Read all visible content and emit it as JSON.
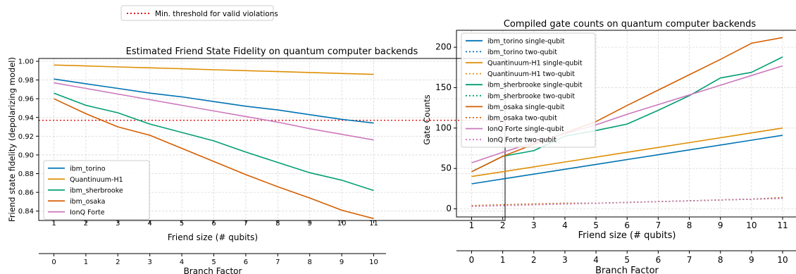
{
  "figure_legend": {
    "label": "Min. threshold for valid violations",
    "color": "#e41a1c"
  },
  "chart_data": [
    {
      "type": "line",
      "title": "Estimated Friend State Fidelity on quantum computer backends",
      "xlabel": "Friend size (# qubits)",
      "ylabel": "Friend state fidelity (depolarizing model)",
      "secondary_xlabel": "Branch Factor",
      "x": [
        1,
        2,
        3,
        4,
        5,
        6,
        7,
        8,
        9,
        10,
        11
      ],
      "xticks": [
        "1",
        "2",
        "3",
        "4",
        "5",
        "6",
        "7",
        "8",
        "9",
        "10",
        "11"
      ],
      "secondary_xticks": [
        "0",
        "1",
        "2",
        "3",
        "4",
        "5",
        "6",
        "7",
        "8",
        "9",
        "10"
      ],
      "yticks": [
        "0.84",
        "0.86",
        "0.88",
        "0.90",
        "0.92",
        "0.94",
        "0.96",
        "0.98",
        "1.00"
      ],
      "ylim": [
        0.83,
        1.003
      ],
      "grid": true,
      "legend_position": "lower-left",
      "threshold": 0.937,
      "series": [
        {
          "name": "ibm_torino",
          "color": "#0173b2",
          "style": "solid",
          "values": [
            0.981,
            0.976,
            0.971,
            0.966,
            0.962,
            0.957,
            0.952,
            0.948,
            0.943,
            0.938,
            0.934
          ]
        },
        {
          "name": "Quantinuum-H1",
          "color": "#de8f05",
          "style": "solid",
          "values": [
            0.996,
            0.995,
            0.994,
            0.993,
            0.992,
            0.991,
            0.99,
            0.989,
            0.988,
            0.987,
            0.986
          ]
        },
        {
          "name": "ibm_sherbrooke",
          "color": "#029e73",
          "style": "solid",
          "values": [
            0.966,
            0.953,
            0.945,
            0.933,
            0.924,
            0.915,
            0.903,
            0.892,
            0.881,
            0.873,
            0.862
          ]
        },
        {
          "name": "ibm_osaka",
          "color": "#d55e00",
          "style": "solid",
          "values": [
            0.96,
            0.944,
            0.93,
            0.921,
            0.907,
            0.893,
            0.879,
            0.866,
            0.854,
            0.841,
            0.832
          ]
        },
        {
          "name": "IonQ Forte",
          "color": "#cc78bc",
          "style": "solid",
          "values": [
            0.977,
            0.971,
            0.965,
            0.959,
            0.953,
            0.947,
            0.941,
            0.935,
            0.928,
            0.922,
            0.916
          ]
        }
      ]
    },
    {
      "type": "line",
      "title": "Compiled gate counts on quantum computer backends",
      "xlabel": "Friend size (# qubits)",
      "ylabel": "Gate Counts",
      "secondary_xlabel": "Branch Factor",
      "x": [
        1,
        2,
        3,
        4,
        5,
        6,
        7,
        8,
        9,
        10,
        11
      ],
      "xticks": [
        "1",
        "2",
        "3",
        "4",
        "5",
        "6",
        "7",
        "8",
        "9",
        "10",
        "11"
      ],
      "secondary_xticks": [
        "0",
        "1",
        "2",
        "3",
        "4",
        "5",
        "6",
        "7",
        "8",
        "9",
        "10"
      ],
      "yticks": [
        "0",
        "50",
        "100",
        "150",
        "200"
      ],
      "ylim": [
        -10,
        221
      ],
      "grid": true,
      "legend_position": "upper-left",
      "series": [
        {
          "name": "ibm_torino single-qubit",
          "color": "#0173b2",
          "style": "solid",
          "values": [
            31,
            37,
            43,
            49,
            55,
            61,
            67,
            73,
            79,
            85,
            91
          ]
        },
        {
          "name": "ibm_torino two-qubit",
          "color": "#0173b2",
          "style": "dotted",
          "values": [
            3,
            4,
            5,
            6,
            7,
            8,
            9,
            10,
            11,
            12,
            13
          ]
        },
        {
          "name": "Quantinuum-H1 single-qubit",
          "color": "#de8f05",
          "style": "solid",
          "values": [
            40,
            46,
            52,
            58,
            64,
            70,
            76,
            82,
            88,
            94,
            100
          ]
        },
        {
          "name": "Quantinuum-H1 two-qubit",
          "color": "#de8f05",
          "style": "dotted",
          "values": [
            3,
            4,
            5,
            6,
            7,
            8,
            9,
            10,
            11,
            12,
            13
          ]
        },
        {
          "name": "ibm_sherbrooke single-qubit",
          "color": "#029e73",
          "style": "solid",
          "values": [
            46,
            65,
            72,
            90,
            97,
            105,
            122,
            140,
            162,
            169,
            188
          ]
        },
        {
          "name": "ibm_sherbrooke two-qubit",
          "color": "#029e73",
          "style": "dotted",
          "values": [
            4,
            5,
            6,
            7,
            7,
            8,
            9,
            10,
            11,
            12,
            14
          ]
        },
        {
          "name": "ibm_osaka single-qubit",
          "color": "#d55e00",
          "style": "solid",
          "values": [
            46,
            65,
            80,
            94,
            108,
            128,
            147,
            166,
            185,
            205,
            212
          ]
        },
        {
          "name": "ibm_osaka two-qubit",
          "color": "#d55e00",
          "style": "dotted",
          "values": [
            4,
            5,
            6,
            7,
            7,
            8,
            9,
            10,
            11,
            12,
            14
          ]
        },
        {
          "name": "IonQ Forte single-qubit",
          "color": "#cc78bc",
          "style": "solid",
          "values": [
            57,
            70,
            82,
            93,
            104,
            117,
            129,
            141,
            153,
            165,
            177
          ]
        },
        {
          "name": "IonQ Forte two-qubit",
          "color": "#cc78bc",
          "style": "dotted",
          "values": [
            3,
            4,
            5,
            6,
            7,
            8,
            9,
            10,
            11,
            12,
            13
          ]
        }
      ]
    }
  ]
}
